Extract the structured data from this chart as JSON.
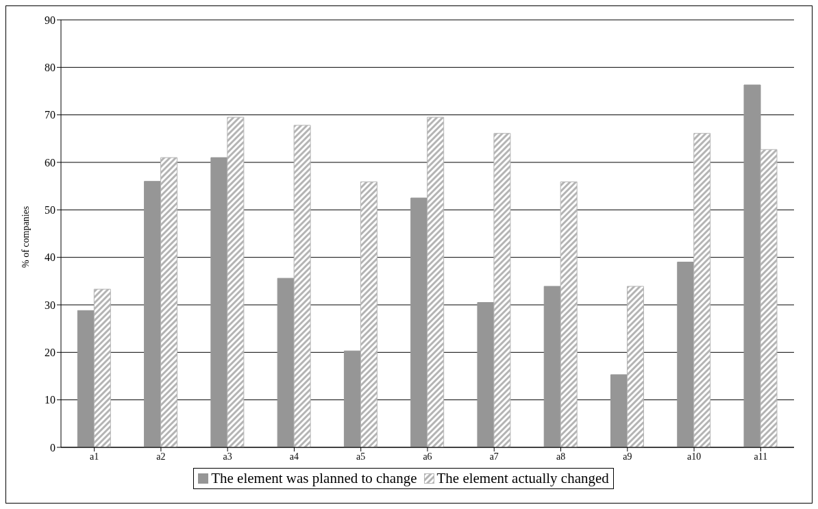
{
  "chart_data": {
    "type": "bar",
    "ylabel": "% of companies",
    "categories": [
      "a1",
      "a2",
      "a3",
      "a4",
      "a5",
      "a6",
      "a7",
      "a8",
      "a9",
      "a10",
      "a11"
    ],
    "series": [
      {
        "name": "The element was planned to change",
        "color": "#969696",
        "values": [
          28.8,
          56,
          61,
          35.6,
          20.3,
          52.5,
          30.5,
          33.9,
          15.3,
          39,
          76.3
        ]
      },
      {
        "name": "The element actually changed",
        "color": "#b4b4b4",
        "values": [
          33.3,
          61,
          69.5,
          67.8,
          55.9,
          69.5,
          66.1,
          55.9,
          33.9,
          66.1,
          62.7
        ]
      }
    ],
    "ylim": [
      0,
      90
    ],
    "yticks": [
      0,
      10,
      20,
      30,
      40,
      50,
      60,
      70,
      80,
      90
    ],
    "grid": "y",
    "legend": "bottom"
  }
}
